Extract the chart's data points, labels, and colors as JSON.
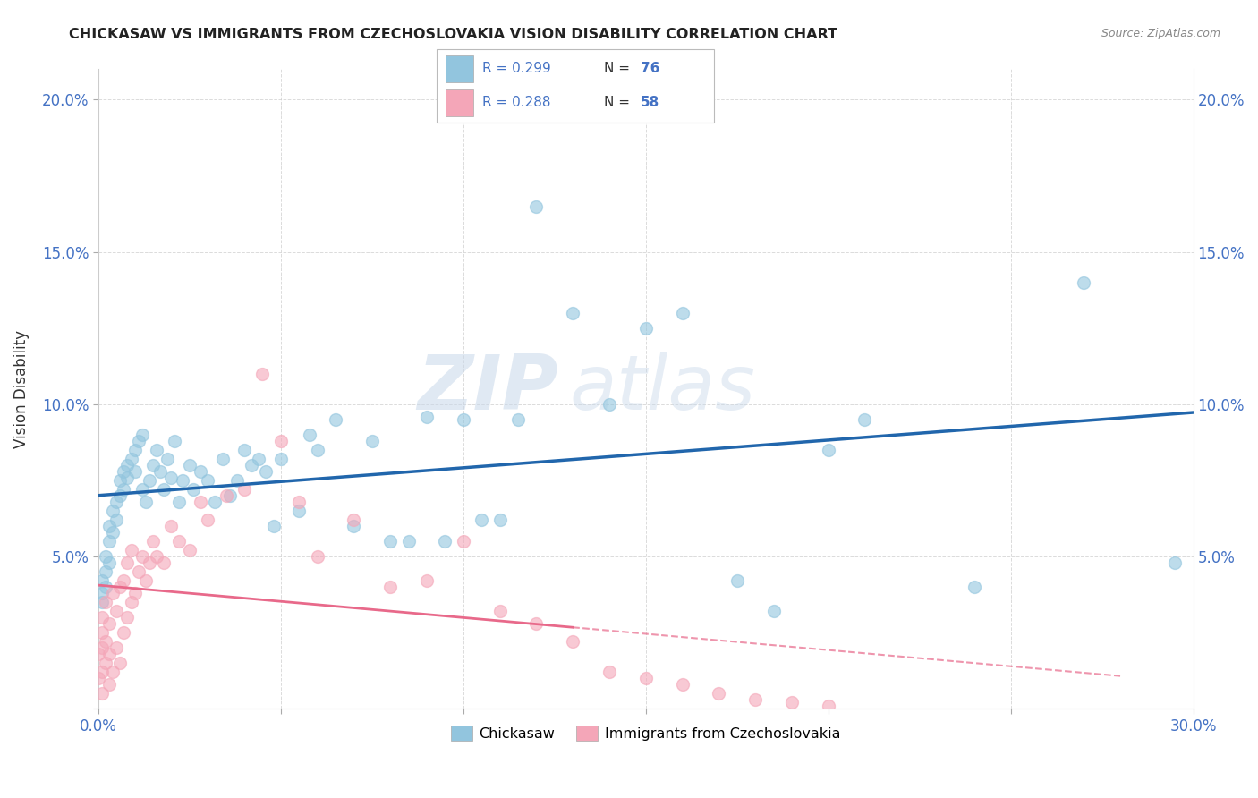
{
  "title": "CHICKASAW VS IMMIGRANTS FROM CZECHOSLOVAKIA VISION DISABILITY CORRELATION CHART",
  "source": "Source: ZipAtlas.com",
  "ylabel": "Vision Disability",
  "xlim": [
    0.0,
    0.3
  ],
  "ylim": [
    0.0,
    0.21
  ],
  "xtick_positions": [
    0.0,
    0.05,
    0.1,
    0.15,
    0.2,
    0.25,
    0.3
  ],
  "xtick_labels": [
    "0.0%",
    "",
    "",
    "",
    "",
    "",
    "30.0%"
  ],
  "ytick_positions": [
    0.0,
    0.05,
    0.1,
    0.15,
    0.2
  ],
  "ytick_labels": [
    "",
    "5.0%",
    "10.0%",
    "15.0%",
    "20.0%"
  ],
  "blue_color": "#92c5de",
  "pink_color": "#f4a6b8",
  "blue_line_color": "#2166ac",
  "pink_line_color": "#e8698a",
  "grid_color": "#cccccc",
  "watermark_zip": "ZIP",
  "watermark_atlas": "atlas",
  "legend_R_blue": "R = 0.299",
  "legend_N_blue": "N = 76",
  "legend_R_pink": "R = 0.288",
  "legend_N_pink": "N = 58",
  "legend_label_blue": "Chickasaw",
  "legend_label_pink": "Immigrants from Czechoslovakia",
  "blue_scatter_x": [
    0.001,
    0.001,
    0.001,
    0.002,
    0.002,
    0.002,
    0.003,
    0.003,
    0.003,
    0.004,
    0.004,
    0.005,
    0.005,
    0.006,
    0.006,
    0.007,
    0.007,
    0.008,
    0.008,
    0.009,
    0.01,
    0.01,
    0.011,
    0.012,
    0.012,
    0.013,
    0.014,
    0.015,
    0.016,
    0.017,
    0.018,
    0.019,
    0.02,
    0.021,
    0.022,
    0.023,
    0.025,
    0.026,
    0.028,
    0.03,
    0.032,
    0.034,
    0.036,
    0.038,
    0.04,
    0.042,
    0.044,
    0.046,
    0.048,
    0.05,
    0.055,
    0.058,
    0.06,
    0.065,
    0.07,
    0.075,
    0.08,
    0.085,
    0.09,
    0.095,
    0.1,
    0.105,
    0.11,
    0.115,
    0.12,
    0.13,
    0.14,
    0.15,
    0.16,
    0.175,
    0.185,
    0.2,
    0.21,
    0.24,
    0.27,
    0.295
  ],
  "blue_scatter_y": [
    0.035,
    0.042,
    0.038,
    0.04,
    0.045,
    0.05,
    0.048,
    0.055,
    0.06,
    0.058,
    0.065,
    0.062,
    0.068,
    0.07,
    0.075,
    0.072,
    0.078,
    0.08,
    0.076,
    0.082,
    0.085,
    0.078,
    0.088,
    0.072,
    0.09,
    0.068,
    0.075,
    0.08,
    0.085,
    0.078,
    0.072,
    0.082,
    0.076,
    0.088,
    0.068,
    0.075,
    0.08,
    0.072,
    0.078,
    0.075,
    0.068,
    0.082,
    0.07,
    0.075,
    0.085,
    0.08,
    0.082,
    0.078,
    0.06,
    0.082,
    0.065,
    0.09,
    0.085,
    0.095,
    0.06,
    0.088,
    0.055,
    0.055,
    0.096,
    0.055,
    0.095,
    0.062,
    0.062,
    0.095,
    0.165,
    0.13,
    0.1,
    0.125,
    0.13,
    0.042,
    0.032,
    0.085,
    0.095,
    0.04,
    0.14,
    0.048
  ],
  "pink_scatter_x": [
    0.0,
    0.0,
    0.001,
    0.001,
    0.001,
    0.001,
    0.001,
    0.002,
    0.002,
    0.002,
    0.003,
    0.003,
    0.003,
    0.004,
    0.004,
    0.005,
    0.005,
    0.006,
    0.006,
    0.007,
    0.007,
    0.008,
    0.008,
    0.009,
    0.009,
    0.01,
    0.011,
    0.012,
    0.013,
    0.014,
    0.015,
    0.016,
    0.018,
    0.02,
    0.022,
    0.025,
    0.028,
    0.03,
    0.035,
    0.04,
    0.045,
    0.05,
    0.055,
    0.06,
    0.07,
    0.08,
    0.09,
    0.1,
    0.11,
    0.12,
    0.13,
    0.14,
    0.15,
    0.16,
    0.17,
    0.18,
    0.19,
    0.2
  ],
  "pink_scatter_y": [
    0.01,
    0.018,
    0.005,
    0.012,
    0.02,
    0.025,
    0.03,
    0.015,
    0.022,
    0.035,
    0.008,
    0.018,
    0.028,
    0.012,
    0.038,
    0.02,
    0.032,
    0.015,
    0.04,
    0.025,
    0.042,
    0.03,
    0.048,
    0.035,
    0.052,
    0.038,
    0.045,
    0.05,
    0.042,
    0.048,
    0.055,
    0.05,
    0.048,
    0.06,
    0.055,
    0.052,
    0.068,
    0.062,
    0.07,
    0.072,
    0.11,
    0.088,
    0.068,
    0.05,
    0.062,
    0.04,
    0.042,
    0.055,
    0.032,
    0.028,
    0.022,
    0.012,
    0.01,
    0.008,
    0.005,
    0.003,
    0.002,
    0.001
  ]
}
